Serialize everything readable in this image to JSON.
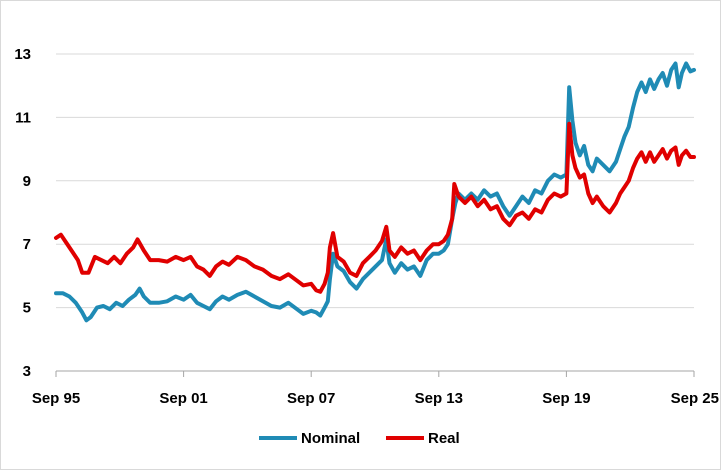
{
  "chart_data": {
    "type": "line",
    "title": "",
    "xlabel": "",
    "ylabel": "",
    "ylim": [
      3,
      13
    ],
    "yticks": [
      "3",
      "5",
      "7",
      "9",
      "11",
      "13"
    ],
    "xlim": [
      1995.67,
      2025.67
    ],
    "xticks": [
      {
        "label": "Sep 95",
        "value": 1995.67
      },
      {
        "label": "Sep 01",
        "value": 2001.67
      },
      {
        "label": "Sep 07",
        "value": 2007.67
      },
      {
        "label": "Sep 13",
        "value": 2013.67
      },
      {
        "label": "Sep 19",
        "value": 2019.67
      },
      {
        "label": "Sep 25",
        "value": 2025.67
      }
    ],
    "grid": "horizontal",
    "legend": "bottom-center",
    "series": [
      {
        "name": "Nominal",
        "color": "#1F8BB5",
        "points": [
          [
            1995.67,
            5.45
          ],
          [
            1996.0,
            5.45
          ],
          [
            1996.3,
            5.35
          ],
          [
            1996.6,
            5.15
          ],
          [
            1996.9,
            4.85
          ],
          [
            1997.1,
            4.6
          ],
          [
            1997.3,
            4.7
          ],
          [
            1997.6,
            5.0
          ],
          [
            1997.9,
            5.05
          ],
          [
            1998.2,
            4.95
          ],
          [
            1998.5,
            5.15
          ],
          [
            1998.8,
            5.05
          ],
          [
            1999.1,
            5.25
          ],
          [
            1999.4,
            5.4
          ],
          [
            1999.6,
            5.6
          ],
          [
            1999.8,
            5.35
          ],
          [
            2000.1,
            5.15
          ],
          [
            2000.5,
            5.15
          ],
          [
            2000.9,
            5.2
          ],
          [
            2001.3,
            5.35
          ],
          [
            2001.67,
            5.25
          ],
          [
            2002.0,
            5.4
          ],
          [
            2002.3,
            5.15
          ],
          [
            2002.6,
            5.05
          ],
          [
            2002.9,
            4.95
          ],
          [
            2003.2,
            5.2
          ],
          [
            2003.5,
            5.35
          ],
          [
            2003.8,
            5.25
          ],
          [
            2004.2,
            5.4
          ],
          [
            2004.6,
            5.5
          ],
          [
            2005.0,
            5.35
          ],
          [
            2005.4,
            5.2
          ],
          [
            2005.8,
            5.05
          ],
          [
            2006.2,
            5.0
          ],
          [
            2006.6,
            5.15
          ],
          [
            2007.0,
            4.95
          ],
          [
            2007.3,
            4.8
          ],
          [
            2007.67,
            4.9
          ],
          [
            2007.9,
            4.85
          ],
          [
            2008.1,
            4.75
          ],
          [
            2008.3,
            5.0
          ],
          [
            2008.45,
            5.2
          ],
          [
            2008.55,
            5.9
          ],
          [
            2008.7,
            6.7
          ],
          [
            2008.9,
            6.3
          ],
          [
            2009.2,
            6.15
          ],
          [
            2009.5,
            5.8
          ],
          [
            2009.8,
            5.6
          ],
          [
            2010.1,
            5.9
          ],
          [
            2010.4,
            6.1
          ],
          [
            2010.7,
            6.3
          ],
          [
            2011.0,
            6.5
          ],
          [
            2011.2,
            7.15
          ],
          [
            2011.35,
            6.4
          ],
          [
            2011.6,
            6.1
          ],
          [
            2011.9,
            6.4
          ],
          [
            2012.2,
            6.2
          ],
          [
            2012.5,
            6.3
          ],
          [
            2012.8,
            6.0
          ],
          [
            2013.1,
            6.5
          ],
          [
            2013.4,
            6.7
          ],
          [
            2013.67,
            6.7
          ],
          [
            2013.9,
            6.8
          ],
          [
            2014.1,
            7.0
          ],
          [
            2014.3,
            7.8
          ],
          [
            2014.45,
            8.3
          ],
          [
            2014.6,
            8.6
          ],
          [
            2014.9,
            8.4
          ],
          [
            2015.2,
            8.6
          ],
          [
            2015.5,
            8.4
          ],
          [
            2015.8,
            8.7
          ],
          [
            2016.1,
            8.5
          ],
          [
            2016.4,
            8.6
          ],
          [
            2016.7,
            8.2
          ],
          [
            2017.0,
            7.9
          ],
          [
            2017.3,
            8.2
          ],
          [
            2017.6,
            8.5
          ],
          [
            2017.9,
            8.3
          ],
          [
            2018.2,
            8.7
          ],
          [
            2018.5,
            8.6
          ],
          [
            2018.8,
            9.0
          ],
          [
            2019.1,
            9.2
          ],
          [
            2019.4,
            9.1
          ],
          [
            2019.67,
            9.2
          ],
          [
            2019.8,
            11.95
          ],
          [
            2019.95,
            10.9
          ],
          [
            2020.1,
            10.2
          ],
          [
            2020.3,
            9.8
          ],
          [
            2020.5,
            10.1
          ],
          [
            2020.7,
            9.5
          ],
          [
            2020.9,
            9.3
          ],
          [
            2021.1,
            9.7
          ],
          [
            2021.4,
            9.5
          ],
          [
            2021.7,
            9.3
          ],
          [
            2022.0,
            9.6
          ],
          [
            2022.2,
            10.0
          ],
          [
            2022.4,
            10.4
          ],
          [
            2022.6,
            10.7
          ],
          [
            2022.8,
            11.3
          ],
          [
            2023.0,
            11.8
          ],
          [
            2023.2,
            12.1
          ],
          [
            2023.4,
            11.8
          ],
          [
            2023.6,
            12.2
          ],
          [
            2023.8,
            11.9
          ],
          [
            2024.0,
            12.2
          ],
          [
            2024.2,
            12.4
          ],
          [
            2024.4,
            12.0
          ],
          [
            2024.6,
            12.5
          ],
          [
            2024.8,
            12.7
          ],
          [
            2024.95,
            11.95
          ],
          [
            2025.1,
            12.4
          ],
          [
            2025.3,
            12.7
          ],
          [
            2025.5,
            12.45
          ],
          [
            2025.67,
            12.5
          ]
        ]
      },
      {
        "name": "Real",
        "color": "#E00000",
        "points": [
          [
            1995.67,
            7.2
          ],
          [
            1995.9,
            7.3
          ],
          [
            1996.1,
            7.1
          ],
          [
            1996.4,
            6.8
          ],
          [
            1996.7,
            6.5
          ],
          [
            1996.9,
            6.1
          ],
          [
            1997.2,
            6.1
          ],
          [
            1997.5,
            6.6
          ],
          [
            1997.8,
            6.5
          ],
          [
            1998.1,
            6.4
          ],
          [
            1998.4,
            6.6
          ],
          [
            1998.7,
            6.4
          ],
          [
            1999.0,
            6.7
          ],
          [
            1999.3,
            6.9
          ],
          [
            1999.5,
            7.15
          ],
          [
            1999.8,
            6.8
          ],
          [
            2000.1,
            6.5
          ],
          [
            2000.5,
            6.5
          ],
          [
            2000.9,
            6.45
          ],
          [
            2001.3,
            6.6
          ],
          [
            2001.67,
            6.5
          ],
          [
            2002.0,
            6.6
          ],
          [
            2002.3,
            6.3
          ],
          [
            2002.6,
            6.2
          ],
          [
            2002.9,
            6.0
          ],
          [
            2003.2,
            6.3
          ],
          [
            2003.5,
            6.45
          ],
          [
            2003.8,
            6.35
          ],
          [
            2004.2,
            6.6
          ],
          [
            2004.6,
            6.5
          ],
          [
            2005.0,
            6.3
          ],
          [
            2005.4,
            6.2
          ],
          [
            2005.8,
            6.0
          ],
          [
            2006.2,
            5.9
          ],
          [
            2006.6,
            6.05
          ],
          [
            2007.0,
            5.85
          ],
          [
            2007.3,
            5.7
          ],
          [
            2007.67,
            5.75
          ],
          [
            2007.9,
            5.55
          ],
          [
            2008.1,
            5.5
          ],
          [
            2008.3,
            5.75
          ],
          [
            2008.45,
            6.1
          ],
          [
            2008.55,
            6.9
          ],
          [
            2008.7,
            7.35
          ],
          [
            2008.9,
            6.6
          ],
          [
            2009.2,
            6.45
          ],
          [
            2009.5,
            6.1
          ],
          [
            2009.8,
            6.0
          ],
          [
            2010.1,
            6.4
          ],
          [
            2010.4,
            6.6
          ],
          [
            2010.7,
            6.8
          ],
          [
            2011.0,
            7.1
          ],
          [
            2011.2,
            7.55
          ],
          [
            2011.35,
            6.8
          ],
          [
            2011.6,
            6.6
          ],
          [
            2011.9,
            6.9
          ],
          [
            2012.2,
            6.7
          ],
          [
            2012.5,
            6.8
          ],
          [
            2012.8,
            6.5
          ],
          [
            2013.1,
            6.8
          ],
          [
            2013.4,
            7.0
          ],
          [
            2013.67,
            7.0
          ],
          [
            2013.9,
            7.1
          ],
          [
            2014.1,
            7.3
          ],
          [
            2014.3,
            7.8
          ],
          [
            2014.4,
            8.9
          ],
          [
            2014.6,
            8.5
          ],
          [
            2014.9,
            8.3
          ],
          [
            2015.2,
            8.5
          ],
          [
            2015.5,
            8.2
          ],
          [
            2015.8,
            8.4
          ],
          [
            2016.1,
            8.1
          ],
          [
            2016.4,
            8.2
          ],
          [
            2016.7,
            7.8
          ],
          [
            2017.0,
            7.6
          ],
          [
            2017.3,
            7.9
          ],
          [
            2017.6,
            8.0
          ],
          [
            2017.9,
            7.8
          ],
          [
            2018.2,
            8.1
          ],
          [
            2018.5,
            8.0
          ],
          [
            2018.8,
            8.4
          ],
          [
            2019.1,
            8.6
          ],
          [
            2019.4,
            8.5
          ],
          [
            2019.67,
            8.6
          ],
          [
            2019.8,
            10.8
          ],
          [
            2019.95,
            9.8
          ],
          [
            2020.1,
            9.4
          ],
          [
            2020.3,
            9.1
          ],
          [
            2020.5,
            9.2
          ],
          [
            2020.7,
            8.6
          ],
          [
            2020.9,
            8.3
          ],
          [
            2021.1,
            8.5
          ],
          [
            2021.4,
            8.2
          ],
          [
            2021.7,
            8.0
          ],
          [
            2022.0,
            8.3
          ],
          [
            2022.2,
            8.6
          ],
          [
            2022.4,
            8.8
          ],
          [
            2022.6,
            9.0
          ],
          [
            2022.8,
            9.4
          ],
          [
            2023.0,
            9.7
          ],
          [
            2023.2,
            9.9
          ],
          [
            2023.4,
            9.6
          ],
          [
            2023.6,
            9.9
          ],
          [
            2023.8,
            9.6
          ],
          [
            2024.0,
            9.8
          ],
          [
            2024.2,
            10.0
          ],
          [
            2024.4,
            9.7
          ],
          [
            2024.6,
            9.95
          ],
          [
            2024.8,
            10.05
          ],
          [
            2024.95,
            9.5
          ],
          [
            2025.1,
            9.8
          ],
          [
            2025.3,
            9.95
          ],
          [
            2025.5,
            9.75
          ],
          [
            2025.67,
            9.75
          ]
        ]
      }
    ]
  }
}
